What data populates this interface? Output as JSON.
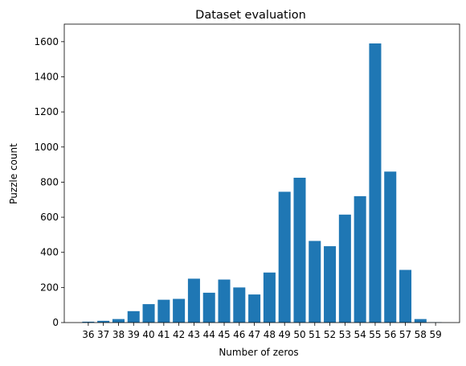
{
  "chart_data": {
    "type": "bar",
    "title": "Dataset evaluation",
    "xlabel": "Number of zeros",
    "ylabel": "Puzzle count",
    "categories": [
      "36",
      "37",
      "38",
      "39",
      "40",
      "41",
      "42",
      "43",
      "44",
      "45",
      "46",
      "47",
      "48",
      "49",
      "50",
      "51",
      "52",
      "53",
      "54",
      "55",
      "56",
      "57",
      "58",
      "59"
    ],
    "values": [
      5,
      10,
      20,
      65,
      105,
      130,
      135,
      250,
      170,
      245,
      200,
      160,
      285,
      745,
      825,
      465,
      435,
      615,
      720,
      1590,
      860,
      300,
      20,
      2
    ],
    "ylim": [
      0,
      1700
    ],
    "yticks": [
      "0",
      "200",
      "400",
      "600",
      "800",
      "1000",
      "1200",
      "1400",
      "1600"
    ],
    "grid": false,
    "legend": "none",
    "bar_color": "#1f77b4"
  }
}
